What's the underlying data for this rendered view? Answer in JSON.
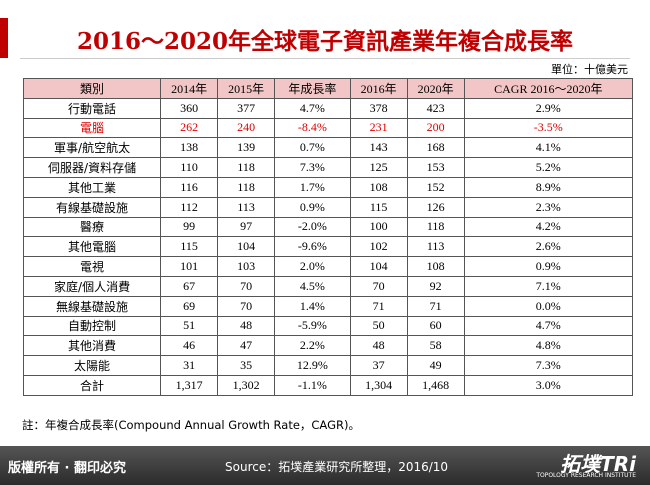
{
  "title": "2016～2020年全球電子資訊產業年複合成長率",
  "unit": "單位：十億美元",
  "table": {
    "header": [
      "類別",
      "2014年",
      "2015年",
      "年成長率",
      "2016年",
      "2020年",
      "CAGR  2016～2020年"
    ],
    "rows": [
      [
        "行動電話",
        "360",
        "377",
        "4.7%",
        "378",
        "423",
        "2.9%"
      ],
      [
        "電腦",
        "262",
        "240",
        "-8.4%",
        "231",
        "200",
        "-3.5%"
      ],
      [
        "軍事/航空航太",
        "138",
        "139",
        "0.7%",
        "143",
        "168",
        "4.1%"
      ],
      [
        "伺服器/資料存儲",
        "110",
        "118",
        "7.3%",
        "125",
        "153",
        "5.2%"
      ],
      [
        "其他工業",
        "116",
        "118",
        "1.7%",
        "108",
        "152",
        "8.9%"
      ],
      [
        "有線基礎設施",
        "112",
        "113",
        "0.9%",
        "115",
        "126",
        "2.3%"
      ],
      [
        "醫療",
        "99",
        "97",
        "-2.0%",
        "100",
        "118",
        "4.2%"
      ],
      [
        "其他電腦",
        "115",
        "104",
        "-9.6%",
        "102",
        "113",
        "2.6%"
      ],
      [
        "電視",
        "101",
        "103",
        "2.0%",
        "104",
        "108",
        "0.9%"
      ],
      [
        "家庭/個人消費",
        "67",
        "70",
        "4.5%",
        "70",
        "92",
        "7.1%"
      ],
      [
        "無線基礎設施",
        "69",
        "70",
        "1.4%",
        "71",
        "71",
        "0.0%"
      ],
      [
        "自動控制",
        "51",
        "48",
        "-5.9%",
        "50",
        "60",
        "4.7%"
      ],
      [
        "其他消費",
        "46",
        "47",
        "2.2%",
        "48",
        "58",
        "4.8%"
      ],
      [
        "太陽能",
        "31",
        "35",
        "12.9%",
        "37",
        "49",
        "7.3%"
      ],
      [
        "合計",
        "1,317",
        "1,302",
        "-1.1%",
        "1,304",
        "1,468",
        "3.0%"
      ]
    ]
  },
  "note": "註：年複合成長率(Compound Annual Growth Rate，CAGR)。",
  "footer": {
    "copyright": "版權所有 · 翻印必究",
    "source": "Source：拓墣產業研究所整理，2016/10",
    "logo": "拓墣TRi",
    "logo_sub": "TOPOLOGY RESEARCH INSTITUTE"
  }
}
